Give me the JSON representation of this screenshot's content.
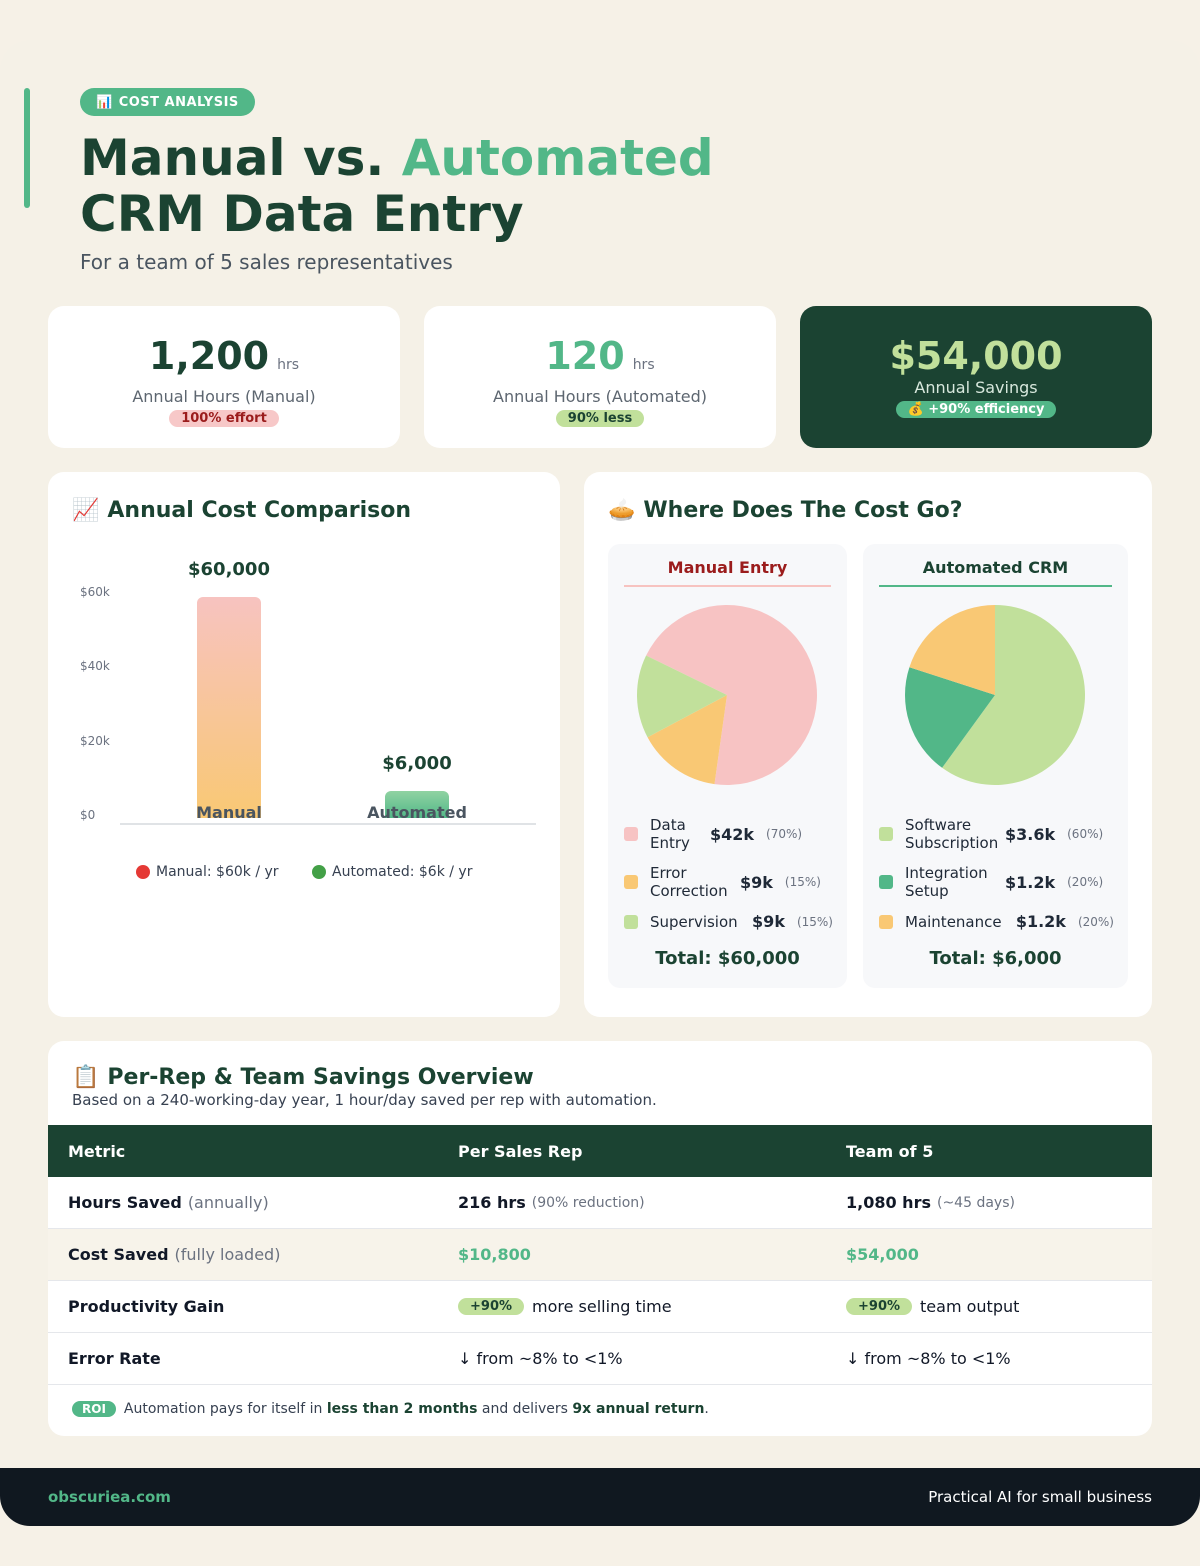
{
  "header": {
    "tag_icon": "📊",
    "tag_label": "COST ANALYSIS",
    "title_part1": "Manual vs. ",
    "title_highlight": "Automated",
    "title_line2": "CRM Data Entry",
    "subtitle": "For a team of 5 sales representatives"
  },
  "stats": [
    {
      "value": "1,200",
      "unit": "hrs",
      "label": "Annual Hours (Manual)",
      "badge": "100% effort"
    },
    {
      "value": "120",
      "unit": "hrs",
      "label": "Annual Hours (Automated)",
      "badge": "90% less"
    },
    {
      "value": "$54,000",
      "label": "Annual Savings",
      "badge": "💰 +90% efficiency"
    }
  ],
  "bar_chart": {
    "icon": "📈",
    "title": "Annual Cost Comparison",
    "legend_manual": "Manual: $60k / yr",
    "legend_auto": "Automated: $6k / yr"
  },
  "pie_section": {
    "icon": "🥧",
    "title": "Where Does The Cost Go?",
    "manual": {
      "heading": "Manual Entry",
      "items": [
        {
          "name": "Data Entry",
          "amount": "$42k",
          "pct": "(70%)",
          "color": "#f7c3c3"
        },
        {
          "name": "Error Correction",
          "amount": "$9k",
          "pct": "(15%)",
          "color": "#f9c874"
        },
        {
          "name": "Supervision",
          "amount": "$9k",
          "pct": "(15%)",
          "color": "#c1e09b"
        }
      ],
      "total": "Total: $60,000"
    },
    "automated": {
      "heading": "Automated CRM",
      "items": [
        {
          "name": "Software Subscription",
          "amount": "$3.6k",
          "pct": "(60%)",
          "color": "#c1e09b"
        },
        {
          "name": "Integration Setup",
          "amount": "$1.2k",
          "pct": "(20%)",
          "color": "#52b788"
        },
        {
          "name": "Maintenance",
          "amount": "$1.2k",
          "pct": "(20%)",
          "color": "#f9c874"
        }
      ],
      "total": "Total: $6,000"
    }
  },
  "chart_data": [
    {
      "type": "bar",
      "categories": [
        "Manual",
        "Automated"
      ],
      "values": [
        60000,
        6000
      ],
      "data_labels": [
        "$60,000",
        "$6,000"
      ],
      "yticks": [
        "$0",
        "$20k",
        "$40k",
        "$60k"
      ],
      "ylim": [
        0,
        60000
      ],
      "title": "Annual Cost Comparison"
    },
    {
      "type": "pie",
      "title": "Manual Entry",
      "labels": [
        "Data Entry",
        "Error Correction",
        "Supervision"
      ],
      "values": [
        70,
        15,
        15
      ],
      "colors": [
        "#f7c3c3",
        "#f9c874",
        "#c1e09b"
      ]
    },
    {
      "type": "pie",
      "title": "Automated CRM",
      "labels": [
        "Software Subscription",
        "Integration Setup",
        "Maintenance"
      ],
      "values": [
        60,
        20,
        20
      ],
      "colors": [
        "#c1e09b",
        "#52b788",
        "#f9c874"
      ]
    }
  ],
  "table": {
    "icon": "📋",
    "title": "Per-Rep & Team Savings Overview",
    "subtitle": "Based on a 240-working-day year, 1 hour/day saved per rep with automation.",
    "headers": [
      "Metric",
      "Per Sales Rep",
      "Team of 5"
    ],
    "rows": [
      {
        "metric": "Hours Saved",
        "metric_note": "(annually)",
        "rep": "216 hrs",
        "rep_note": "(90% reduction)",
        "team": "1,080 hrs",
        "team_note": "(~45 days)"
      },
      {
        "metric": "Cost Saved",
        "metric_note": "(fully loaded)",
        "rep": "$10,800",
        "team": "$54,000"
      },
      {
        "metric": "Productivity Gain",
        "rep_chip": "+90%",
        "rep": "more selling time",
        "team_chip": "+90%",
        "team": "team output"
      },
      {
        "metric": "Error Rate",
        "rep": "↓ from ~8% to <1%",
        "team": "↓ from ~8% to <1%"
      }
    ],
    "roi_chip": "ROI",
    "roi_text_1": "Automation pays for itself in",
    "roi_bold_1": "less than 2 months",
    "roi_text_2": "and delivers",
    "roi_bold_2": "9x annual return",
    "roi_text_3": "."
  },
  "footer": {
    "brand": "obscuriea.com",
    "tagline": "Practical AI for small business"
  }
}
